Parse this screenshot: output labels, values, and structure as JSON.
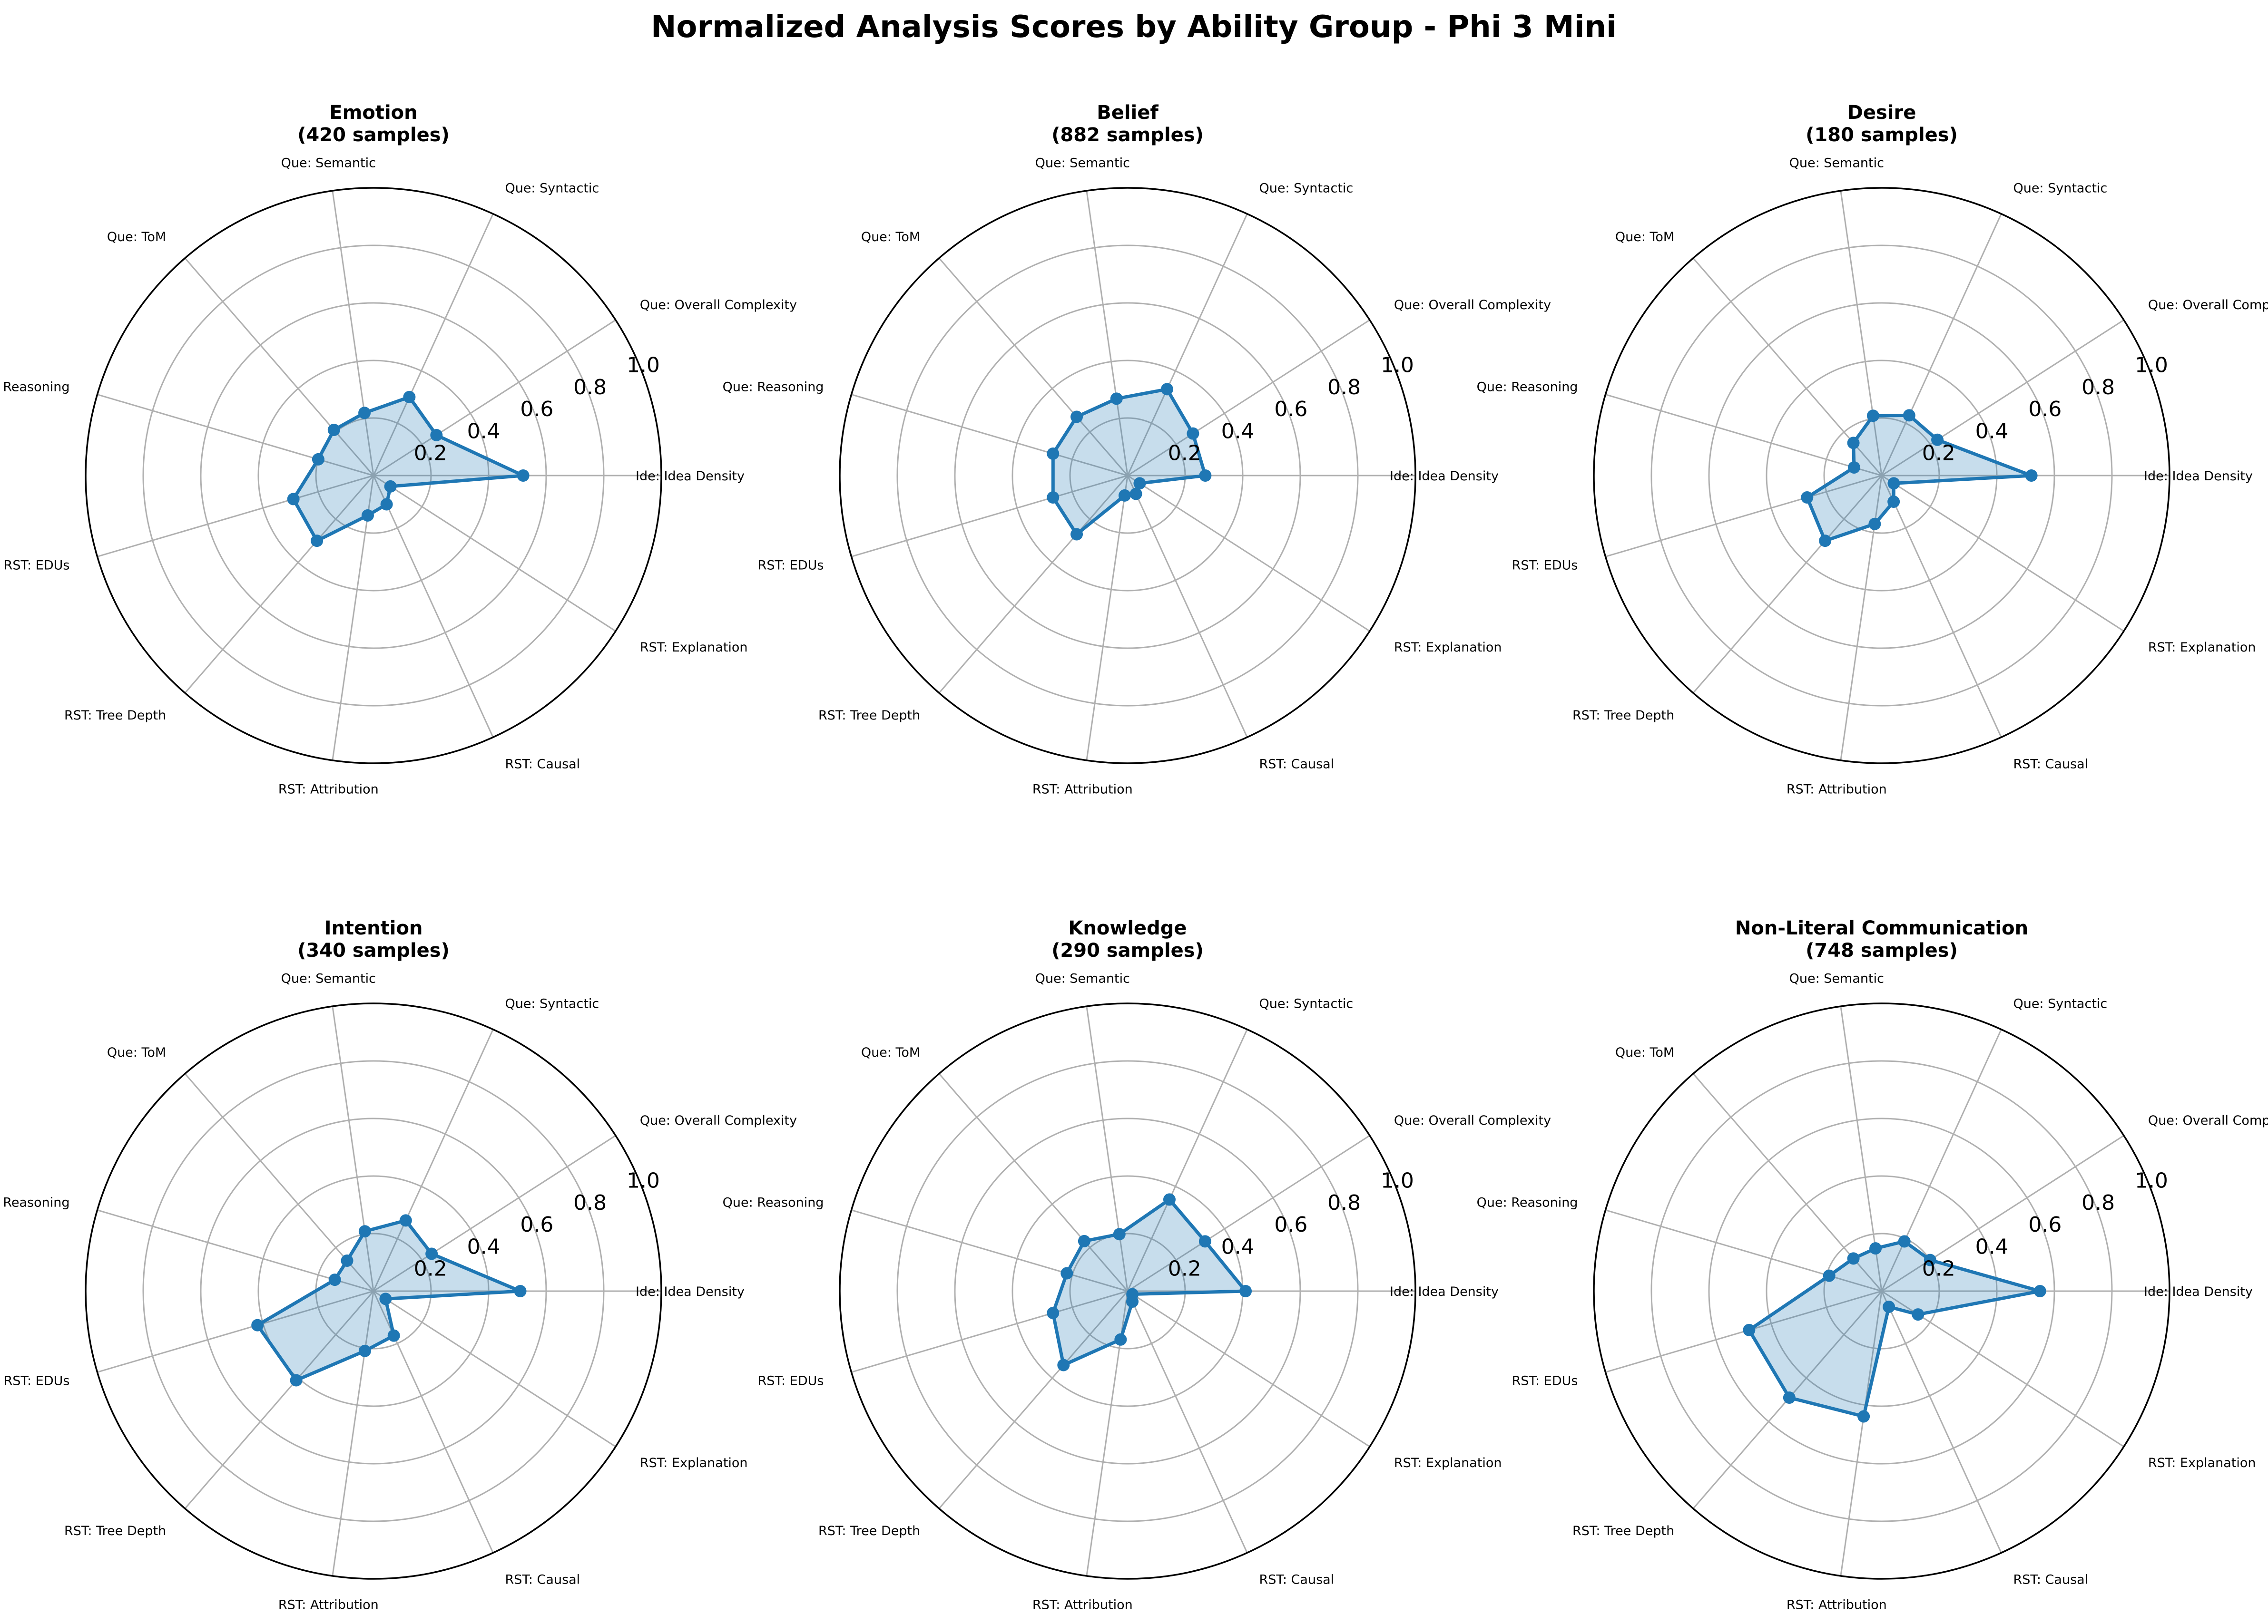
{
  "title": "Normalized Analysis Scores by Ability Group - Phi 3 Mini",
  "chart_data": {
    "type": "radar",
    "axes": [
      "Ide: Idea Density",
      "Que: Overall Complexity",
      "Que: Syntactic",
      "Que: Semantic",
      "Que: ToM",
      "Que: Reasoning",
      "RST: EDUs",
      "RST: Tree Depth",
      "RST: Attribution",
      "RST: Causal",
      "RST: Explanation"
    ],
    "rlim": [
      0,
      1.0
    ],
    "radial_ticks": [
      "0.2",
      "0.4",
      "0.6",
      "0.8",
      "1.0"
    ],
    "grid": true,
    "line_color": "#1f77b4",
    "fill_color": "#1f77b4",
    "panels": [
      {
        "name": "Emotion",
        "samples_label": "(420 samples)",
        "values": [
          0.52,
          0.26,
          0.3,
          0.22,
          0.21,
          0.2,
          0.29,
          0.3,
          0.14,
          0.11,
          0.07
        ]
      },
      {
        "name": "Belief",
        "samples_label": "(882 samples)",
        "values": [
          0.27,
          0.27,
          0.33,
          0.27,
          0.27,
          0.27,
          0.27,
          0.27,
          0.07,
          0.07,
          0.05
        ]
      },
      {
        "name": "Desire",
        "samples_label": "(180 samples)",
        "values": [
          0.52,
          0.23,
          0.23,
          0.21,
          0.15,
          0.1,
          0.27,
          0.3,
          0.17,
          0.1,
          0.05
        ]
      },
      {
        "name": "Intention",
        "samples_label": "(340 samples)",
        "values": [
          0.51,
          0.24,
          0.27,
          0.21,
          0.14,
          0.14,
          0.42,
          0.41,
          0.21,
          0.17,
          0.05
        ]
      },
      {
        "name": "Knowledge",
        "samples_label": "(290 samples)",
        "values": [
          0.41,
          0.32,
          0.35,
          0.2,
          0.23,
          0.22,
          0.27,
          0.34,
          0.17,
          0.04,
          0.02
        ]
      },
      {
        "name": "Non-Literal Communication",
        "samples_label": "(748 samples)",
        "values": [
          0.55,
          0.2,
          0.19,
          0.15,
          0.15,
          0.19,
          0.48,
          0.49,
          0.44,
          0.06,
          0.15
        ]
      }
    ]
  }
}
